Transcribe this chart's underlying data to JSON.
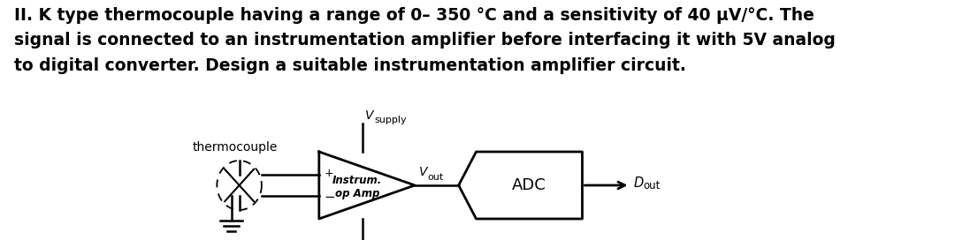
{
  "title_text": "II. K type thermocouple having a range of 0– 350 °C and a sensitivity of 40 μV/°C. The\nsignal is connected to an instrumentation amplifier before interfacing it with 5V analog\nto digital converter. Design a suitable instrumentation amplifier circuit.",
  "bg_color": "#ffffff",
  "text_color": "#000000",
  "label_thermocouple": "thermocouple",
  "label_vsupply_main": "V",
  "label_vsupply_sub": "supply",
  "label_vout_main": "V",
  "label_vout_sub": "out",
  "label_dout_main": "D",
  "label_dout_sub": "out",
  "label_instrum": "Instrum.",
  "label_opamp": "op Amp",
  "label_adc": "ADC",
  "label_plus": "+",
  "label_minus": "−",
  "fig_width": 10.8,
  "fig_height": 2.72,
  "dpi": 100
}
